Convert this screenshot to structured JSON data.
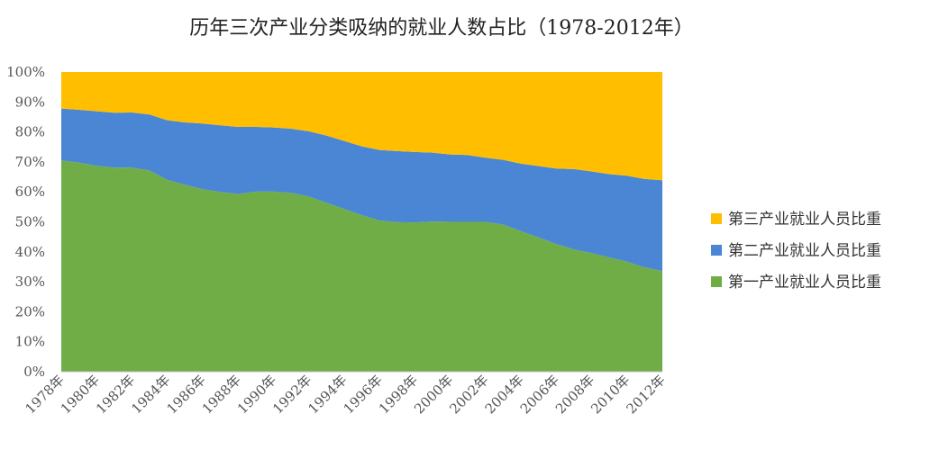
{
  "chart_data": {
    "type": "area",
    "stacked": true,
    "percent": true,
    "title": "历年三次产业分类吸纳的就业人数占比（1978-2012年）",
    "xlabel": "",
    "ylabel": "",
    "ylim": [
      0,
      100
    ],
    "y_ticks": [
      "0%",
      "10%",
      "20%",
      "30%",
      "40%",
      "50%",
      "60%",
      "70%",
      "80%",
      "90%",
      "100%"
    ],
    "x": [
      1978,
      1979,
      1980,
      1981,
      1982,
      1983,
      1984,
      1985,
      1986,
      1987,
      1988,
      1989,
      1990,
      1991,
      1992,
      1993,
      1994,
      1995,
      1996,
      1997,
      1998,
      1999,
      2000,
      2001,
      2002,
      2003,
      2004,
      2005,
      2006,
      2007,
      2008,
      2009,
      2010,
      2011,
      2012
    ],
    "x_tick_labels": [
      "1978年",
      "1980年",
      "1982年",
      "1984年",
      "1986年",
      "1988年",
      "1990年",
      "1992年",
      "1994年",
      "1996年",
      "1998年",
      "2000年",
      "2002年",
      "2004年",
      "2006年",
      "2008年",
      "2010年",
      "2012年"
    ],
    "legend_position": "right",
    "grid": false,
    "series": [
      {
        "name": "第一产业就业人员比重",
        "color": "#70AD47",
        "values": [
          70.5,
          69.8,
          68.7,
          68.1,
          68.1,
          67.1,
          64.0,
          62.4,
          60.9,
          60.0,
          59.3,
          60.1,
          60.1,
          59.7,
          58.5,
          56.4,
          54.3,
          52.2,
          50.5,
          49.9,
          49.8,
          50.1,
          50.0,
          50.0,
          50.0,
          49.1,
          46.9,
          44.8,
          42.6,
          40.8,
          39.6,
          38.1,
          36.7,
          34.8,
          33.6
        ]
      },
      {
        "name": "第二产业就业人员比重",
        "color": "#4A86D4",
        "values": [
          17.3,
          17.6,
          18.2,
          18.3,
          18.4,
          18.7,
          19.9,
          20.8,
          21.9,
          22.2,
          22.4,
          21.6,
          21.4,
          21.4,
          21.7,
          22.4,
          22.7,
          23.0,
          23.5,
          23.7,
          23.5,
          23.0,
          22.5,
          22.3,
          21.4,
          21.6,
          22.5,
          23.8,
          25.2,
          26.8,
          27.2,
          27.8,
          28.7,
          29.5,
          30.3
        ]
      },
      {
        "name": "第三产业就业人员比重",
        "color": "#FFBF00",
        "values": [
          12.2,
          12.6,
          13.1,
          13.6,
          13.5,
          14.2,
          16.1,
          16.8,
          17.2,
          17.8,
          18.3,
          18.3,
          18.5,
          18.9,
          19.8,
          21.2,
          23.0,
          24.8,
          26.0,
          26.4,
          26.7,
          26.9,
          27.5,
          27.7,
          28.6,
          29.3,
          30.6,
          31.4,
          32.2,
          32.4,
          33.2,
          34.1,
          34.6,
          35.7,
          36.1
        ]
      }
    ]
  }
}
